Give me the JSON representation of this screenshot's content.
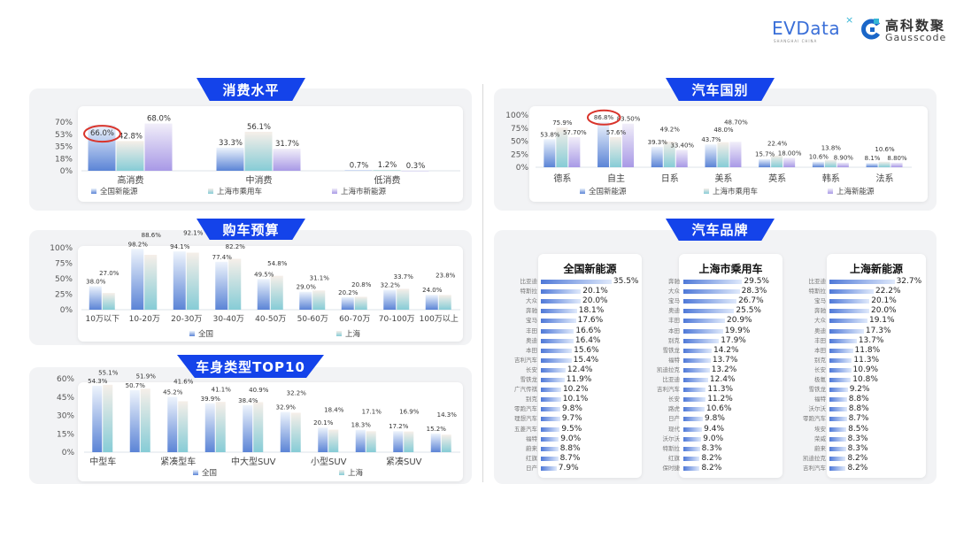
{
  "logos": {
    "evdata": "EVData",
    "evdata_sub": "SHANGHAI CHINA",
    "gauss_cn": "高科数聚",
    "gauss_en": "Gausscode"
  },
  "colors": {
    "banner": "#1443ea",
    "series1": "#5b84d6",
    "series2": "#86ccd6",
    "series3": "#a899e6",
    "highlight": "#d9342b"
  },
  "chart_data": [
    {
      "type": "bar",
      "title": "消费水平",
      "ylim": [
        0,
        70
      ],
      "yticks": [
        "0%",
        "18%",
        "35%",
        "53%",
        "70%"
      ],
      "categories": [
        "高消费",
        "中消费",
        "低消费"
      ],
      "series": [
        {
          "name": "全国新能源",
          "values": [
            66.0,
            33.3,
            0.7
          ],
          "decimals": 1
        },
        {
          "name": "上海市乘用车",
          "values": [
            42.8,
            56.1,
            1.2
          ],
          "decimals": 1
        },
        {
          "name": "上海市新能源",
          "values": [
            68.0,
            31.7,
            0.3
          ],
          "decimals": 1
        }
      ],
      "highlight": {
        "series": 0,
        "index": 0
      },
      "legend": "bottom"
    },
    {
      "type": "bar",
      "title": "购车预算",
      "ylim": [
        0,
        100
      ],
      "yticks": [
        "0%",
        "25%",
        "50%",
        "75%",
        "100%"
      ],
      "categories": [
        "10万以下",
        "10-20万",
        "20-30万",
        "30-40万",
        "40-50万",
        "50-60万",
        "60-70万",
        "70-100万",
        "100万以上"
      ],
      "series": [
        {
          "name": "全国",
          "values": [
            38.0,
            98.2,
            94.1,
            77.4,
            49.5,
            29.0,
            20.2,
            32.2,
            24.0
          ],
          "decimals": 1
        },
        {
          "name": "上海",
          "values": [
            27.0,
            88.6,
            92.1,
            82.2,
            54.8,
            31.1,
            20.8,
            33.7,
            23.8
          ],
          "decimals": 1
        }
      ],
      "legend": "bottom"
    },
    {
      "type": "bar",
      "title": "车身类型TOP10",
      "ylim": [
        0,
        60
      ],
      "yticks": [
        "0%",
        "15%",
        "30%",
        "45%",
        "60%"
      ],
      "categories": [
        "中型车",
        "",
        "紧凑型车",
        "",
        "中大型SUV",
        "",
        "小型SUV",
        "",
        "紧凑SUV",
        ""
      ],
      "series": [
        {
          "name": "全国",
          "values": [
            54.3,
            50.7,
            45.2,
            39.9,
            38.4,
            32.9,
            20.1,
            18.3,
            17.2,
            15.2
          ],
          "decimals": 1
        },
        {
          "name": "上海",
          "values": [
            55.1,
            51.9,
            41.6,
            41.1,
            40.9,
            32.2,
            18.4,
            17.1,
            16.9,
            14.3
          ],
          "decimals": 1
        }
      ],
      "legend": "bottom"
    },
    {
      "type": "bar",
      "title": "汽车国别",
      "ylim": [
        0,
        100
      ],
      "yticks": [
        "0%",
        "25%",
        "50%",
        "75%",
        "100%"
      ],
      "categories": [
        "德系",
        "自主",
        "日系",
        "美系",
        "英系",
        "韩系",
        "法系"
      ],
      "series": [
        {
          "name": "全国新能源",
          "values": [
            53.8,
            86.8,
            39.3,
            43.7,
            15.7,
            10.6,
            8.1
          ],
          "decimals": 1
        },
        {
          "name": "上海市乘用车",
          "values": [
            75.9,
            57.6,
            49.2,
            48.0,
            22.4,
            13.8,
            10.6
          ],
          "decimals": 1
        },
        {
          "name": "上海新能源",
          "values": [
            57.7,
            83.5,
            33.4,
            48.7,
            18.0,
            8.9,
            8.8
          ],
          "decimals": 2
        }
      ],
      "highlight": {
        "series": 0,
        "index": 1
      },
      "legend": "bottom"
    },
    {
      "type": "bar",
      "orientation": "horizontal",
      "title": "汽车品牌",
      "panels": [
        {
          "title": "全国新能源",
          "names": [
            "比亚迪",
            "特斯拉",
            "大众",
            "奔驰",
            "宝马",
            "丰田",
            "奥迪",
            "本田",
            "吉利汽车",
            "长安",
            "雪铁龙",
            "广汽传祺",
            "别克",
            "零跑汽车",
            "理想汽车",
            "五菱汽车",
            "福特",
            "蔚来",
            "红旗",
            "日产"
          ],
          "values": [
            35.5,
            20.1,
            20.0,
            18.1,
            17.6,
            16.6,
            16.4,
            15.6,
            15.4,
            12.4,
            11.9,
            10.2,
            10.1,
            9.8,
            9.7,
            9.5,
            9.0,
            8.8,
            8.7,
            7.9
          ]
        },
        {
          "title": "上海市乘用车",
          "names": [
            "奔驰",
            "大众",
            "宝马",
            "奥迪",
            "丰田",
            "本田",
            "别克",
            "雪铁龙",
            "福特",
            "凯迪拉克",
            "比亚迪",
            "吉利汽车",
            "长安",
            "路虎",
            "日产",
            "现代",
            "沃尔沃",
            "特斯拉",
            "红旗",
            "保时捷"
          ],
          "values": [
            29.5,
            28.3,
            26.7,
            25.5,
            20.9,
            19.9,
            17.9,
            14.2,
            13.7,
            13.2,
            12.4,
            11.3,
            11.2,
            10.6,
            9.8,
            9.4,
            9.0,
            8.3,
            8.2,
            8.2
          ]
        },
        {
          "title": "上海新能源",
          "names": [
            "比亚迪",
            "特斯拉",
            "宝马",
            "奔驰",
            "大众",
            "奥迪",
            "丰田",
            "本田",
            "别克",
            "长安",
            "极氪",
            "雪铁龙",
            "福特",
            "沃尔沃",
            "零跑汽车",
            "埃安",
            "荣威",
            "蔚来",
            "凯迪拉克",
            "吉利汽车"
          ],
          "values": [
            32.7,
            22.2,
            20.1,
            20.0,
            19.1,
            17.3,
            13.7,
            11.8,
            11.3,
            10.9,
            10.8,
            9.2,
            8.8,
            8.8,
            8.7,
            8.5,
            8.3,
            8.3,
            8.2,
            8.2
          ]
        }
      ]
    }
  ]
}
